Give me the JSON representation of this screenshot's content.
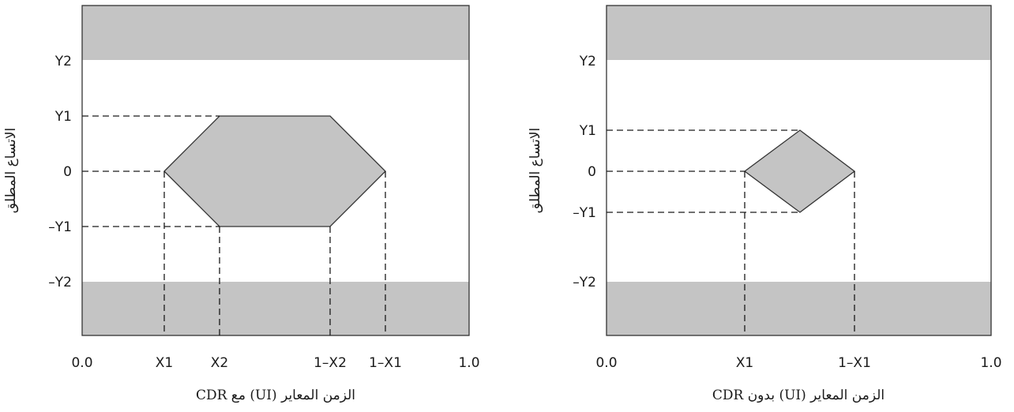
{
  "diagrams": [
    {
      "caption": "الزمن المعاير (UI) مع CDR",
      "ylabel": "الاتساع المطلق",
      "xticks": [
        "0.0",
        "X1",
        "X2",
        "1–X2",
        "1–X1",
        "1.0"
      ],
      "yticks": [
        "Y2",
        "Y1",
        "0",
        "–Y1",
        "–Y2"
      ],
      "shape": "hexagon"
    },
    {
      "caption": "الزمن المعاير (UI) بدون CDR",
      "ylabel": "الاتساع المطلق",
      "xticks": [
        "0.0",
        "X1",
        "1–X1",
        "1.0"
      ],
      "yticks": [
        "Y2",
        "Y1",
        "0",
        "–Y1",
        "–Y2"
      ],
      "shape": "diamond"
    }
  ],
  "colors": {
    "mask_fill": "#c4c4c4",
    "frame": "#333333",
    "dashed": "#1a1a1a"
  }
}
